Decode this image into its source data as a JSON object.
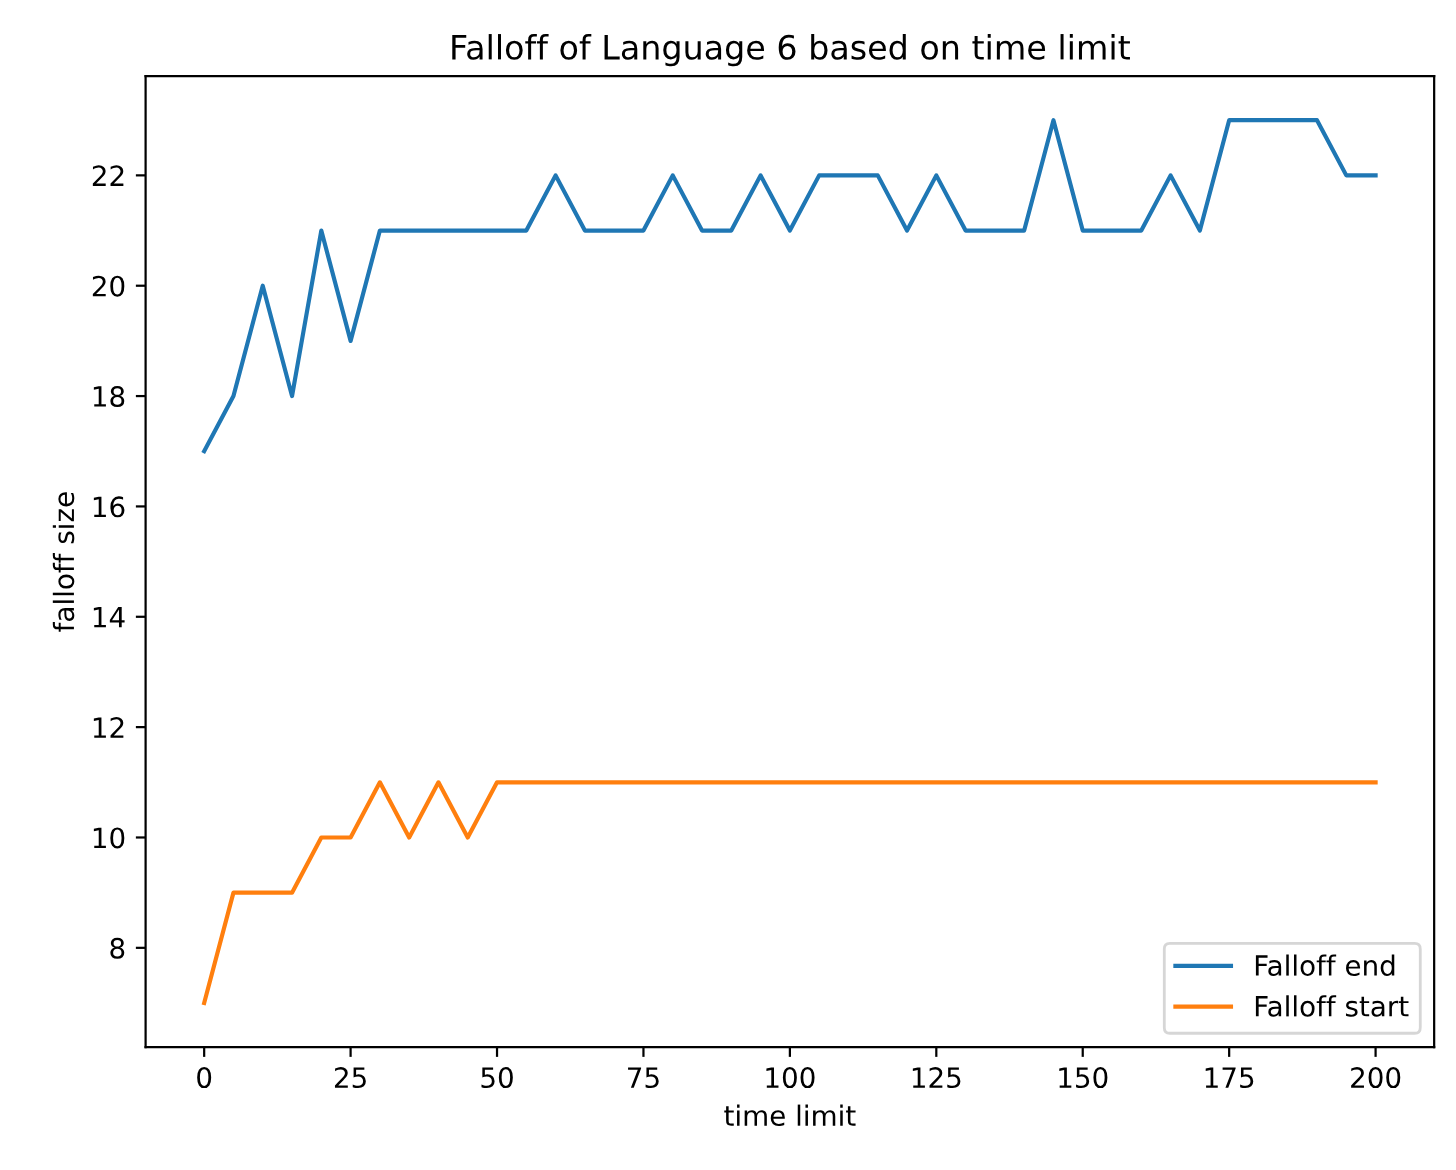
{
  "chart_data": {
    "type": "line",
    "title": "Falloff of Language 6 based on time limit",
    "xlabel": "time limit",
    "ylabel": "falloff size",
    "x": [
      0,
      5,
      10,
      15,
      20,
      25,
      30,
      35,
      40,
      45,
      50,
      55,
      60,
      65,
      70,
      75,
      80,
      85,
      90,
      95,
      100,
      105,
      110,
      115,
      120,
      125,
      130,
      135,
      140,
      145,
      150,
      155,
      160,
      165,
      170,
      175,
      180,
      185,
      190,
      195,
      200
    ],
    "series": [
      {
        "name": "Falloff end",
        "color": "#1f77b4",
        "values": [
          17,
          18,
          20,
          18,
          21,
          19,
          21,
          21,
          21,
          21,
          21,
          21,
          22,
          21,
          21,
          21,
          22,
          21,
          21,
          22,
          21,
          22,
          22,
          22,
          21,
          22,
          21,
          21,
          21,
          23,
          21,
          21,
          21,
          22,
          21,
          23,
          23,
          23,
          23,
          22,
          22
        ]
      },
      {
        "name": "Falloff start",
        "color": "#ff7f0e",
        "values": [
          7,
          9,
          9,
          9,
          10,
          10,
          11,
          10,
          11,
          10,
          11,
          11,
          11,
          11,
          11,
          11,
          11,
          11,
          11,
          11,
          11,
          11,
          11,
          11,
          11,
          11,
          11,
          11,
          11,
          11,
          11,
          11,
          11,
          11,
          11,
          11,
          11,
          11,
          11,
          11,
          11
        ]
      }
    ],
    "xlim": [
      -10,
      210
    ],
    "ylim": [
      6.2,
      23.8
    ],
    "xticks": [
      0,
      25,
      50,
      75,
      100,
      125,
      150,
      175,
      200
    ],
    "yticks": [
      8,
      10,
      12,
      14,
      16,
      18,
      20,
      22
    ],
    "legend": "bottom right",
    "grid": false
  }
}
